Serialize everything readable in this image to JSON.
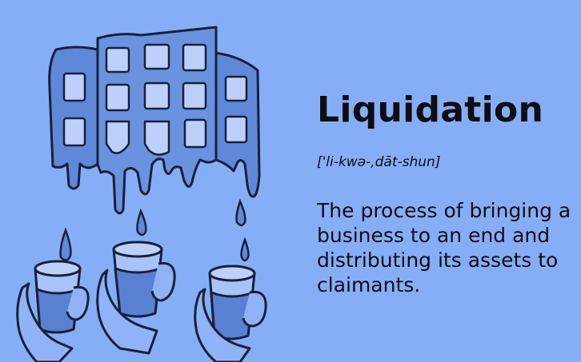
{
  "term": "Liquidation",
  "pronunciation": "['li-kwə-,dāt-shun]",
  "definition": "The process of bringing a business to an end and distributing its assets to claimants.",
  "illustration": {
    "subject": "melting-building-into-cups-icon",
    "colors": {
      "background": "#86aef7",
      "building_fill": "#5f88d8",
      "building_light": "#7ea5ef",
      "window_fill": "#bcd0fb",
      "ink": "#16213a",
      "glass_fill": "#a9c3f8",
      "liquid_fill": "#5a80d2",
      "hand_fill": "#8fb3f6"
    }
  }
}
